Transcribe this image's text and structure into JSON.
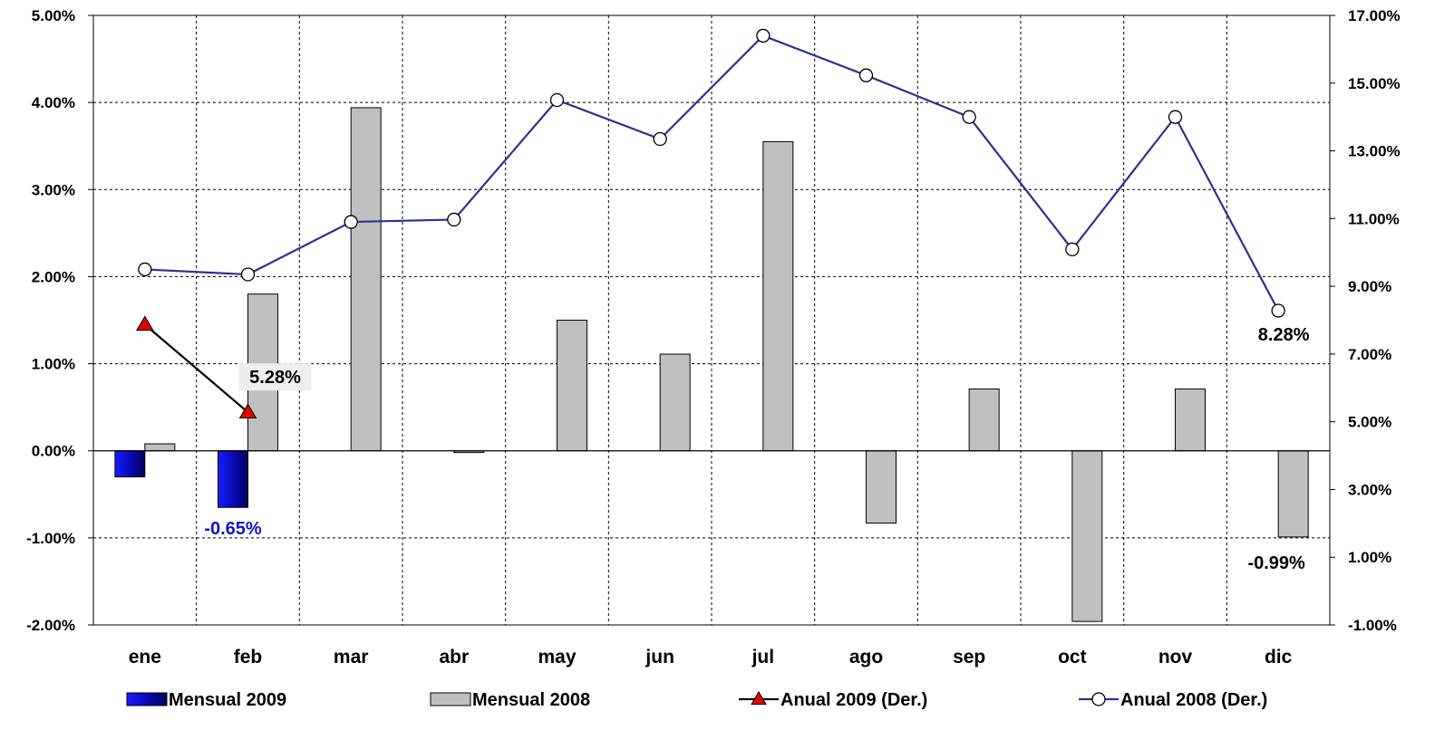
{
  "chart_data": {
    "type": "bar",
    "categories": [
      "ene",
      "feb",
      "mar",
      "abr",
      "may",
      "jun",
      "jul",
      "ago",
      "sep",
      "oct",
      "nov",
      "dic"
    ],
    "y_left": {
      "ylim": [
        -2,
        5
      ],
      "ticks": [
        -2,
        -1,
        0,
        1,
        2,
        3,
        4,
        5
      ],
      "tick_labels": [
        "-2.00%",
        "-1.00%",
        "0.00%",
        "1.00%",
        "2.00%",
        "3.00%",
        "4.00%",
        "5.00%"
      ]
    },
    "y_right": {
      "ylim": [
        -1,
        17
      ],
      "ticks": [
        -1,
        1,
        3,
        5,
        7,
        9,
        11,
        13,
        15,
        17
      ],
      "tick_labels": [
        "-1.00%",
        "1.00%",
        "3.00%",
        "5.00%",
        "7.00%",
        "9.00%",
        "11.00%",
        "13.00%",
        "15.00%",
        "17.00%"
      ]
    },
    "grid": true,
    "legend_position": "bottom",
    "series": [
      {
        "name": "Mensual 2009",
        "type": "bar",
        "axis": "left",
        "color": "#0a0ad8",
        "values": [
          -0.3,
          -0.65,
          null,
          null,
          null,
          null,
          null,
          null,
          null,
          null,
          null,
          null
        ]
      },
      {
        "name": "Mensual 2008",
        "type": "bar",
        "axis": "left",
        "color": "#c0c0c0",
        "values": [
          0.08,
          1.8,
          3.94,
          -0.02,
          1.5,
          1.11,
          3.55,
          -0.83,
          0.71,
          -1.96,
          0.71,
          -0.99
        ]
      },
      {
        "name": "Anual 2009 (Der.)",
        "type": "line",
        "axis": "right",
        "color": "#000000",
        "marker_color": "#e00000",
        "marker": "triangle",
        "values": [
          7.87,
          5.28,
          null,
          null,
          null,
          null,
          null,
          null,
          null,
          null,
          null,
          null
        ]
      },
      {
        "name": "Anual 2008 (Der.)",
        "type": "line",
        "axis": "right",
        "color": "#2e3192",
        "marker": "circle",
        "values": [
          9.5,
          9.35,
          10.9,
          10.97,
          14.5,
          13.35,
          16.4,
          15.23,
          14.0,
          10.09,
          14.0,
          8.28
        ]
      }
    ],
    "data_labels": [
      {
        "series": 0,
        "index": 1,
        "text": "-0.65%",
        "color": "#1414c8"
      },
      {
        "series": 2,
        "index": 1,
        "text": "5.28%",
        "color": "#000000",
        "boxed": true
      },
      {
        "series": 3,
        "index": 11,
        "text": "8.28%",
        "color": "#000000"
      },
      {
        "series": 1,
        "index": 11,
        "text": "-0.99%",
        "color": "#000000"
      }
    ]
  }
}
